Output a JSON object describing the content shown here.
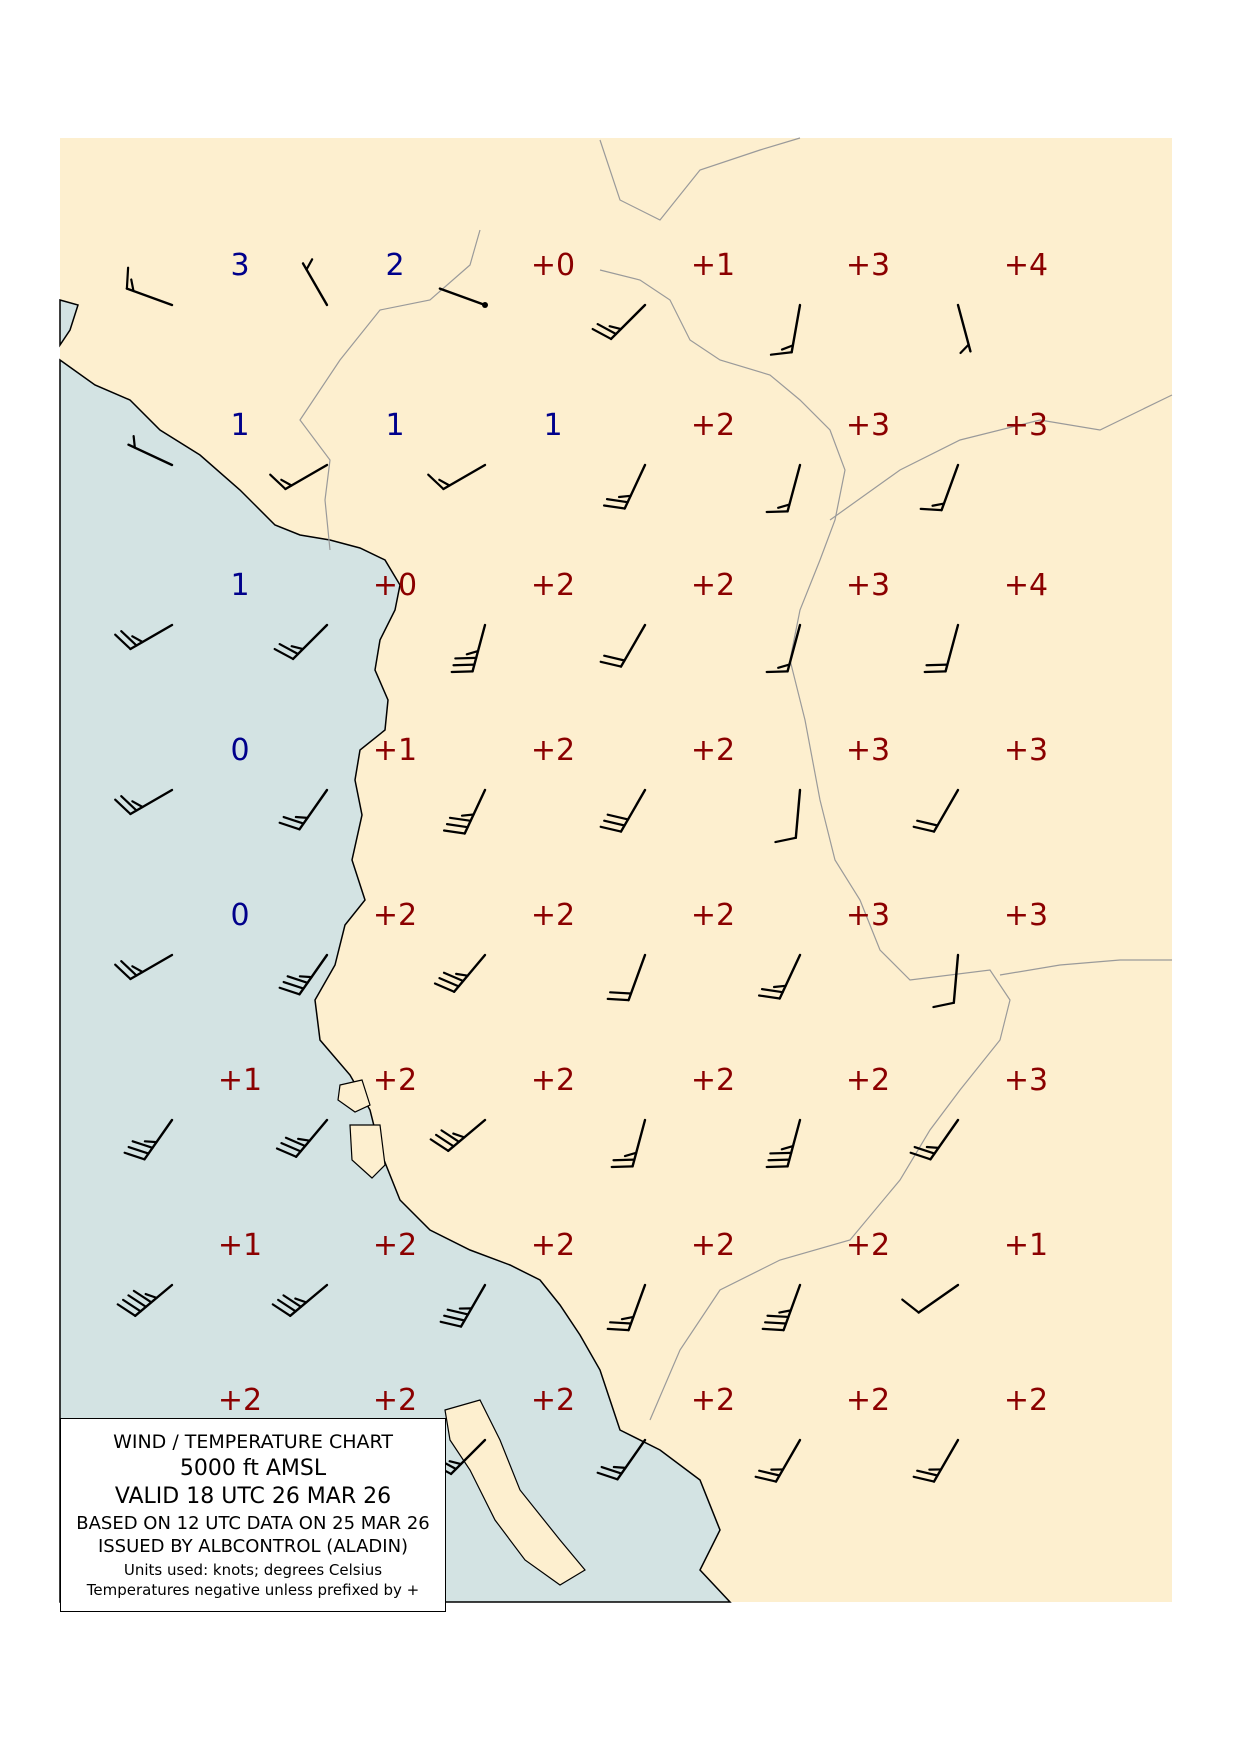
{
  "colors": {
    "land": "#fdefcf",
    "sea": "#d3e3e3",
    "border": "#9a9a9a",
    "coast": "#000000",
    "positive_temp": "#8b0000",
    "negative_temp": "#00008b",
    "barb": "#000000"
  },
  "legend": {
    "title": "WIND / TEMPERATURE CHART",
    "level": "5000 ft AMSL",
    "valid": "VALID 18 UTC 26 MAR 26",
    "based_on": "BASED ON 12 UTC DATA ON 25 MAR 26",
    "issued_by": "ISSUED BY ALBCONTROL (ALADIN)",
    "units": "Units used: knots; degrees Celsius",
    "note": "Temperatures negative unless prefixed by +"
  },
  "grid": {
    "columns": 7,
    "rows": 8
  },
  "stations": [
    {
      "row": 0,
      "col": 0,
      "temp": "3",
      "dir": 290,
      "speed": 15
    },
    {
      "row": 0,
      "col": 1,
      "temp": "2",
      "dir": 330,
      "speed": 5
    },
    {
      "row": 0,
      "col": 2,
      "temp": "+0",
      "dir": 290,
      "speed": 0
    },
    {
      "row": 0,
      "col": 3,
      "temp": "+1",
      "dir": 225,
      "speed": 25
    },
    {
      "row": 0,
      "col": 4,
      "temp": "+3",
      "dir": 190,
      "speed": 15
    },
    {
      "row": 0,
      "col": 5,
      "temp": "+4",
      "dir": 165,
      "speed": 5
    },
    {
      "row": 1,
      "col": 0,
      "temp": "1",
      "dir": 295,
      "speed": 5
    },
    {
      "row": 1,
      "col": 1,
      "temp": "1",
      "dir": 240,
      "speed": 15
    },
    {
      "row": 1,
      "col": 2,
      "temp": "1",
      "dir": 240,
      "speed": 15
    },
    {
      "row": 1,
      "col": 3,
      "temp": "+2",
      "dir": 205,
      "speed": 25
    },
    {
      "row": 1,
      "col": 4,
      "temp": "+3",
      "dir": 195,
      "speed": 15
    },
    {
      "row": 1,
      "col": 5,
      "temp": "+3",
      "dir": 200,
      "speed": 15
    },
    {
      "row": 2,
      "col": 0,
      "temp": "1",
      "dir": 240,
      "speed": 25
    },
    {
      "row": 2,
      "col": 1,
      "temp": "+0",
      "dir": 225,
      "speed": 25
    },
    {
      "row": 2,
      "col": 2,
      "temp": "+2",
      "dir": 195,
      "speed": 35
    },
    {
      "row": 2,
      "col": 3,
      "temp": "+2",
      "dir": 210,
      "speed": 20
    },
    {
      "row": 2,
      "col": 4,
      "temp": "+3",
      "dir": 195,
      "speed": 15
    },
    {
      "row": 2,
      "col": 5,
      "temp": "+4",
      "dir": 195,
      "speed": 20
    },
    {
      "row": 3,
      "col": 0,
      "temp": "0",
      "dir": 240,
      "speed": 25
    },
    {
      "row": 3,
      "col": 1,
      "temp": "+1",
      "dir": 215,
      "speed": 25
    },
    {
      "row": 3,
      "col": 2,
      "temp": "+2",
      "dir": 205,
      "speed": 35
    },
    {
      "row": 3,
      "col": 3,
      "temp": "+2",
      "dir": 210,
      "speed": 30
    },
    {
      "row": 3,
      "col": 4,
      "temp": "+3",
      "dir": 185,
      "speed": 10
    },
    {
      "row": 3,
      "col": 5,
      "temp": "+3",
      "dir": 210,
      "speed": 20
    },
    {
      "row": 4,
      "col": 0,
      "temp": "0",
      "dir": 240,
      "speed": 25
    },
    {
      "row": 4,
      "col": 1,
      "temp": "+2",
      "dir": 215,
      "speed": 35
    },
    {
      "row": 4,
      "col": 2,
      "temp": "+2",
      "dir": 220,
      "speed": 35
    },
    {
      "row": 4,
      "col": 3,
      "temp": "+2",
      "dir": 200,
      "speed": 20
    },
    {
      "row": 4,
      "col": 4,
      "temp": "+3",
      "dir": 205,
      "speed": 25
    },
    {
      "row": 4,
      "col": 5,
      "temp": "+3",
      "dir": 185,
      "speed": 10
    },
    {
      "row": 5,
      "col": 0,
      "temp": "+1",
      "dir": 215,
      "speed": 35
    },
    {
      "row": 5,
      "col": 1,
      "temp": "+2",
      "dir": 220,
      "speed": 35
    },
    {
      "row": 5,
      "col": 2,
      "temp": "+2",
      "dir": 230,
      "speed": 35
    },
    {
      "row": 5,
      "col": 3,
      "temp": "+2",
      "dir": 195,
      "speed": 25
    },
    {
      "row": 5,
      "col": 4,
      "temp": "+2",
      "dir": 195,
      "speed": 35
    },
    {
      "row": 5,
      "col": 5,
      "temp": "+3",
      "dir": 215,
      "speed": 25
    },
    {
      "row": 6,
      "col": 0,
      "temp": "+1",
      "dir": 230,
      "speed": 45
    },
    {
      "row": 6,
      "col": 1,
      "temp": "+2",
      "dir": 230,
      "speed": 35
    },
    {
      "row": 6,
      "col": 2,
      "temp": "+2",
      "dir": 210,
      "speed": 35
    },
    {
      "row": 6,
      "col": 3,
      "temp": "+2",
      "dir": 200,
      "speed": 25
    },
    {
      "row": 6,
      "col": 4,
      "temp": "+2",
      "dir": 200,
      "speed": 35
    },
    {
      "row": 6,
      "col": 5,
      "temp": "+1",
      "dir": 235,
      "speed": 10
    },
    {
      "row": 7,
      "col": 0,
      "temp": "+2",
      "dir": 230,
      "speed": 25
    },
    {
      "row": 7,
      "col": 1,
      "temp": "+2",
      "dir": 225,
      "speed": 35
    },
    {
      "row": 7,
      "col": 2,
      "temp": "+2",
      "dir": 225,
      "speed": 25
    },
    {
      "row": 7,
      "col": 3,
      "temp": "+2",
      "dir": 215,
      "speed": 25
    },
    {
      "row": 7,
      "col": 4,
      "temp": "+2",
      "dir": 210,
      "speed": 25
    },
    {
      "row": 7,
      "col": 5,
      "temp": "+2",
      "dir": 210,
      "speed": 25
    }
  ]
}
